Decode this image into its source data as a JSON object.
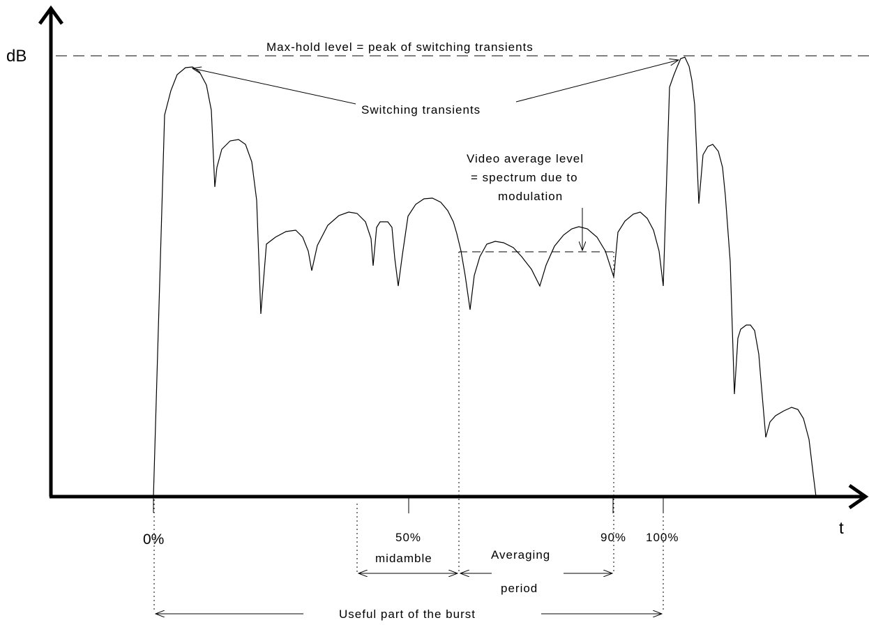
{
  "axes": {
    "y_label": "dB",
    "x_label": "t"
  },
  "levels": {
    "max_hold": "Max-hold level = peak of switching transients",
    "transients": "Switching transients",
    "video_avg_line1": "Video average level",
    "video_avg_line2": "= spectrum due to",
    "video_avg_line3": "modulation"
  },
  "ticks": {
    "t0": "0%",
    "t50": "50%",
    "t90": "90%",
    "t100": "100%"
  },
  "spans": {
    "midamble": "midamble",
    "averaging_line1": "Averaging",
    "averaging_line2": "period",
    "useful": "Useful part of the burst"
  },
  "colors": {
    "stroke": "#000000",
    "background": "#ffffff"
  }
}
